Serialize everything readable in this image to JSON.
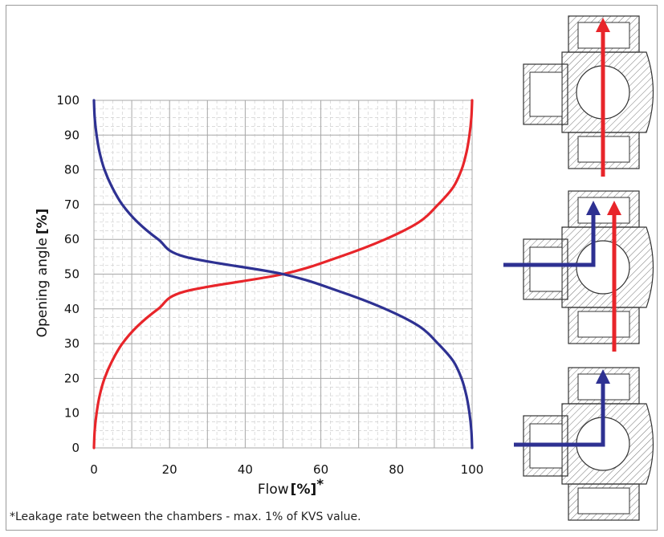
{
  "chart_data": {
    "type": "line",
    "xlabel": "Flow",
    "xlabel_unit": "[%]",
    "xlabel_mark": "*",
    "ylabel": "Opening angle",
    "ylabel_unit": "[%]",
    "xlim": [
      0,
      100
    ],
    "ylim": [
      0,
      100
    ],
    "x_ticks": [
      0,
      20,
      40,
      60,
      80,
      100
    ],
    "y_ticks": [
      0,
      10,
      20,
      30,
      40,
      50,
      60,
      70,
      80,
      90,
      100
    ],
    "grid": true,
    "series": [
      {
        "color": "#e8252a",
        "points": [
          [
            0,
            0
          ],
          [
            0.2,
            5
          ],
          [
            0.7,
            10
          ],
          [
            1.5,
            15
          ],
          [
            2.8,
            20
          ],
          [
            4.8,
            25
          ],
          [
            7.5,
            30
          ],
          [
            11.5,
            35
          ],
          [
            17,
            40
          ],
          [
            24,
            45
          ],
          [
            50,
            50
          ],
          [
            65,
            55
          ],
          [
            77,
            60
          ],
          [
            86,
            65
          ],
          [
            91,
            70
          ],
          [
            95,
            75
          ],
          [
            97.2,
            80
          ],
          [
            98.5,
            85
          ],
          [
            99.3,
            90
          ],
          [
            99.8,
            95
          ],
          [
            100,
            100
          ]
        ]
      },
      {
        "color": "#2e3192",
        "points": [
          [
            0,
            100
          ],
          [
            0.2,
            95
          ],
          [
            0.7,
            90
          ],
          [
            1.5,
            85
          ],
          [
            2.8,
            80
          ],
          [
            4.8,
            75
          ],
          [
            7.5,
            70
          ],
          [
            11.5,
            65
          ],
          [
            17,
            60
          ],
          [
            24,
            55
          ],
          [
            50,
            50
          ],
          [
            65,
            45
          ],
          [
            77,
            40
          ],
          [
            86,
            35
          ],
          [
            91,
            30
          ],
          [
            95,
            25
          ],
          [
            97.2,
            20
          ],
          [
            98.5,
            15
          ],
          [
            99.3,
            10
          ],
          [
            99.8,
            5
          ],
          [
            100,
            0
          ]
        ]
      }
    ]
  },
  "footnote": "*Leakage rate between the chambers - max. 1% of KVS value.",
  "colors": {
    "flow_red": "#e8252a",
    "flow_blue": "#2e3192",
    "grid": "#b8b8b8",
    "valve_line": "#333333"
  },
  "valves": [
    {
      "position": "fully open - straight passage",
      "arrows": [
        "red"
      ]
    },
    {
      "position": "mixing - half open",
      "arrows": [
        "blue",
        "red"
      ]
    },
    {
      "position": "closed straight - side passage",
      "arrows": [
        "blue"
      ]
    }
  ]
}
